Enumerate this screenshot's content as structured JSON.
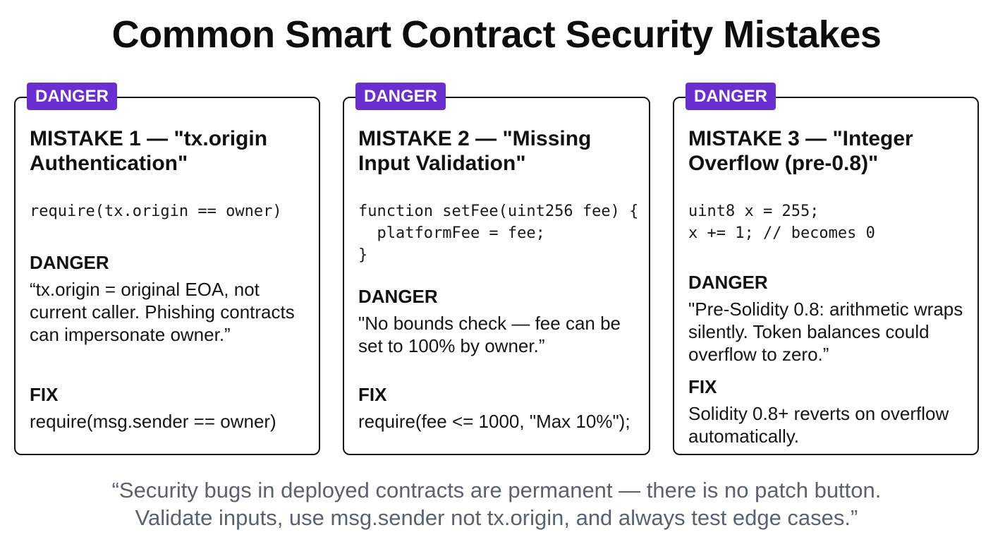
{
  "title": "Common Smart Contract Security Mistakes",
  "colors": {
    "badge": "#6a2fd1",
    "border": "#151515",
    "quote_text": "#5a6270"
  },
  "cards": [
    {
      "badge": "DANGER",
      "title_line1": "MISTAKE 1 — \"tx.origin",
      "title_line2": "Authentication\"",
      "code": "require(tx.origin == owner)",
      "danger_label": "DANGER",
      "danger_text": "“tx.origin = original EOA, not current caller. Phishing contracts can impersonate owner.”",
      "fix_label": "FIX",
      "fix_text": "require(msg.sender == owner)"
    },
    {
      "badge": "DANGER",
      "title_line1": "MISTAKE 2 — \"Missing",
      "title_line2": "Input Validation\"",
      "code": "function setFee(uint256 fee) {\n  platformFee = fee;\n}",
      "danger_label": "DANGER",
      "danger_text": "\"No bounds check — fee can be set to 100% by owner.”",
      "fix_label": "FIX",
      "fix_text": "require(fee <= 1000, \"Max 10%\");"
    },
    {
      "badge": "DANGER",
      "title_line1": "MISTAKE 3 — \"Integer",
      "title_line2": "Overflow (pre-0.8)\"",
      "code": "uint8 x = 255;\nx += 1; // becomes 0",
      "danger_label": "DANGER",
      "danger_text": "\"Pre-Solidity 0.8: arithmetic wraps silently. Token balances could overflow to zero.”",
      "fix_label": "FIX",
      "fix_text": "Solidity 0.8+ reverts on overflow automatically."
    }
  ],
  "quote": {
    "line1": "“Security bugs in deployed contracts are permanent — there is no patch button.",
    "line2": "Validate inputs, use msg.sender not tx.origin, and always test edge cases.”"
  }
}
